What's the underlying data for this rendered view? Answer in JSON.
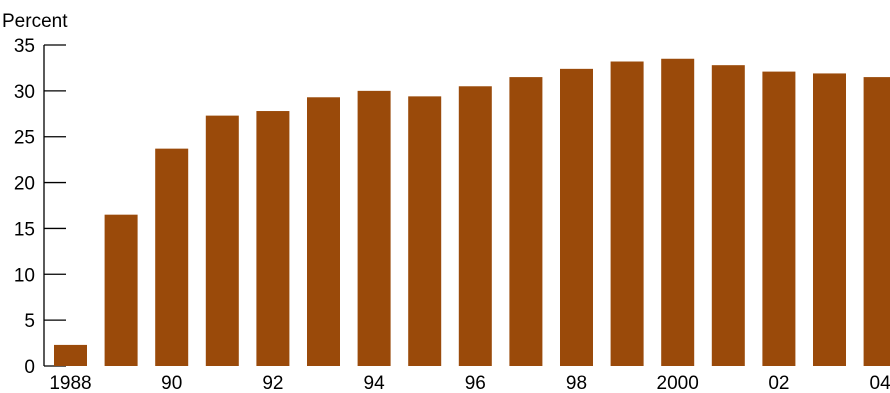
{
  "chart_data": {
    "type": "bar",
    "title": "",
    "xlabel": "",
    "ylabel": "Percent",
    "ylim": [
      0,
      35
    ],
    "yticks": [
      0,
      5,
      10,
      15,
      20,
      25,
      30,
      35
    ],
    "categories": [
      "1988",
      "1989",
      "1990",
      "1991",
      "1992",
      "1993",
      "1994",
      "1995",
      "1996",
      "1997",
      "1998",
      "1999",
      "2000",
      "2001",
      "2002",
      "2003",
      "2004"
    ],
    "x_tick_labels": [
      "1988",
      "",
      "90",
      "",
      "92",
      "",
      "94",
      "",
      "96",
      "",
      "98",
      "",
      "2000",
      "",
      "02",
      "",
      "04"
    ],
    "values": [
      2.3,
      16.5,
      23.7,
      27.3,
      27.8,
      29.3,
      30.0,
      29.4,
      30.5,
      31.5,
      32.4,
      33.2,
      33.5,
      32.8,
      32.1,
      31.9,
      31.5
    ],
    "bar_color": "#9a4a0a",
    "grid": false,
    "legend": "none"
  }
}
